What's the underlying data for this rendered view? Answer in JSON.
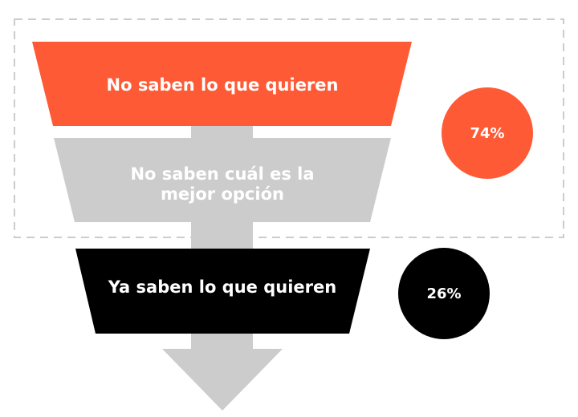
{
  "colors": {
    "stage_1": "#ff5a36",
    "stage_2": "#cccccc",
    "stage_3": "#000000",
    "arrow": "#cccccc",
    "bracket": "#cccccc",
    "badge_1": "#ff5a36",
    "badge_2": "#000000"
  },
  "funnel": {
    "stages": [
      {
        "label_lines": [
          "No saben lo que quieren"
        ]
      },
      {
        "label_lines": [
          "No saben cuál es la",
          "mejor opción"
        ]
      },
      {
        "label_lines": [
          "Ya saben lo que quieren"
        ]
      }
    ]
  },
  "badges": [
    {
      "value": "74%",
      "groups": "stages 1-2"
    },
    {
      "value": "26%",
      "groups": "stage 3"
    }
  ]
}
